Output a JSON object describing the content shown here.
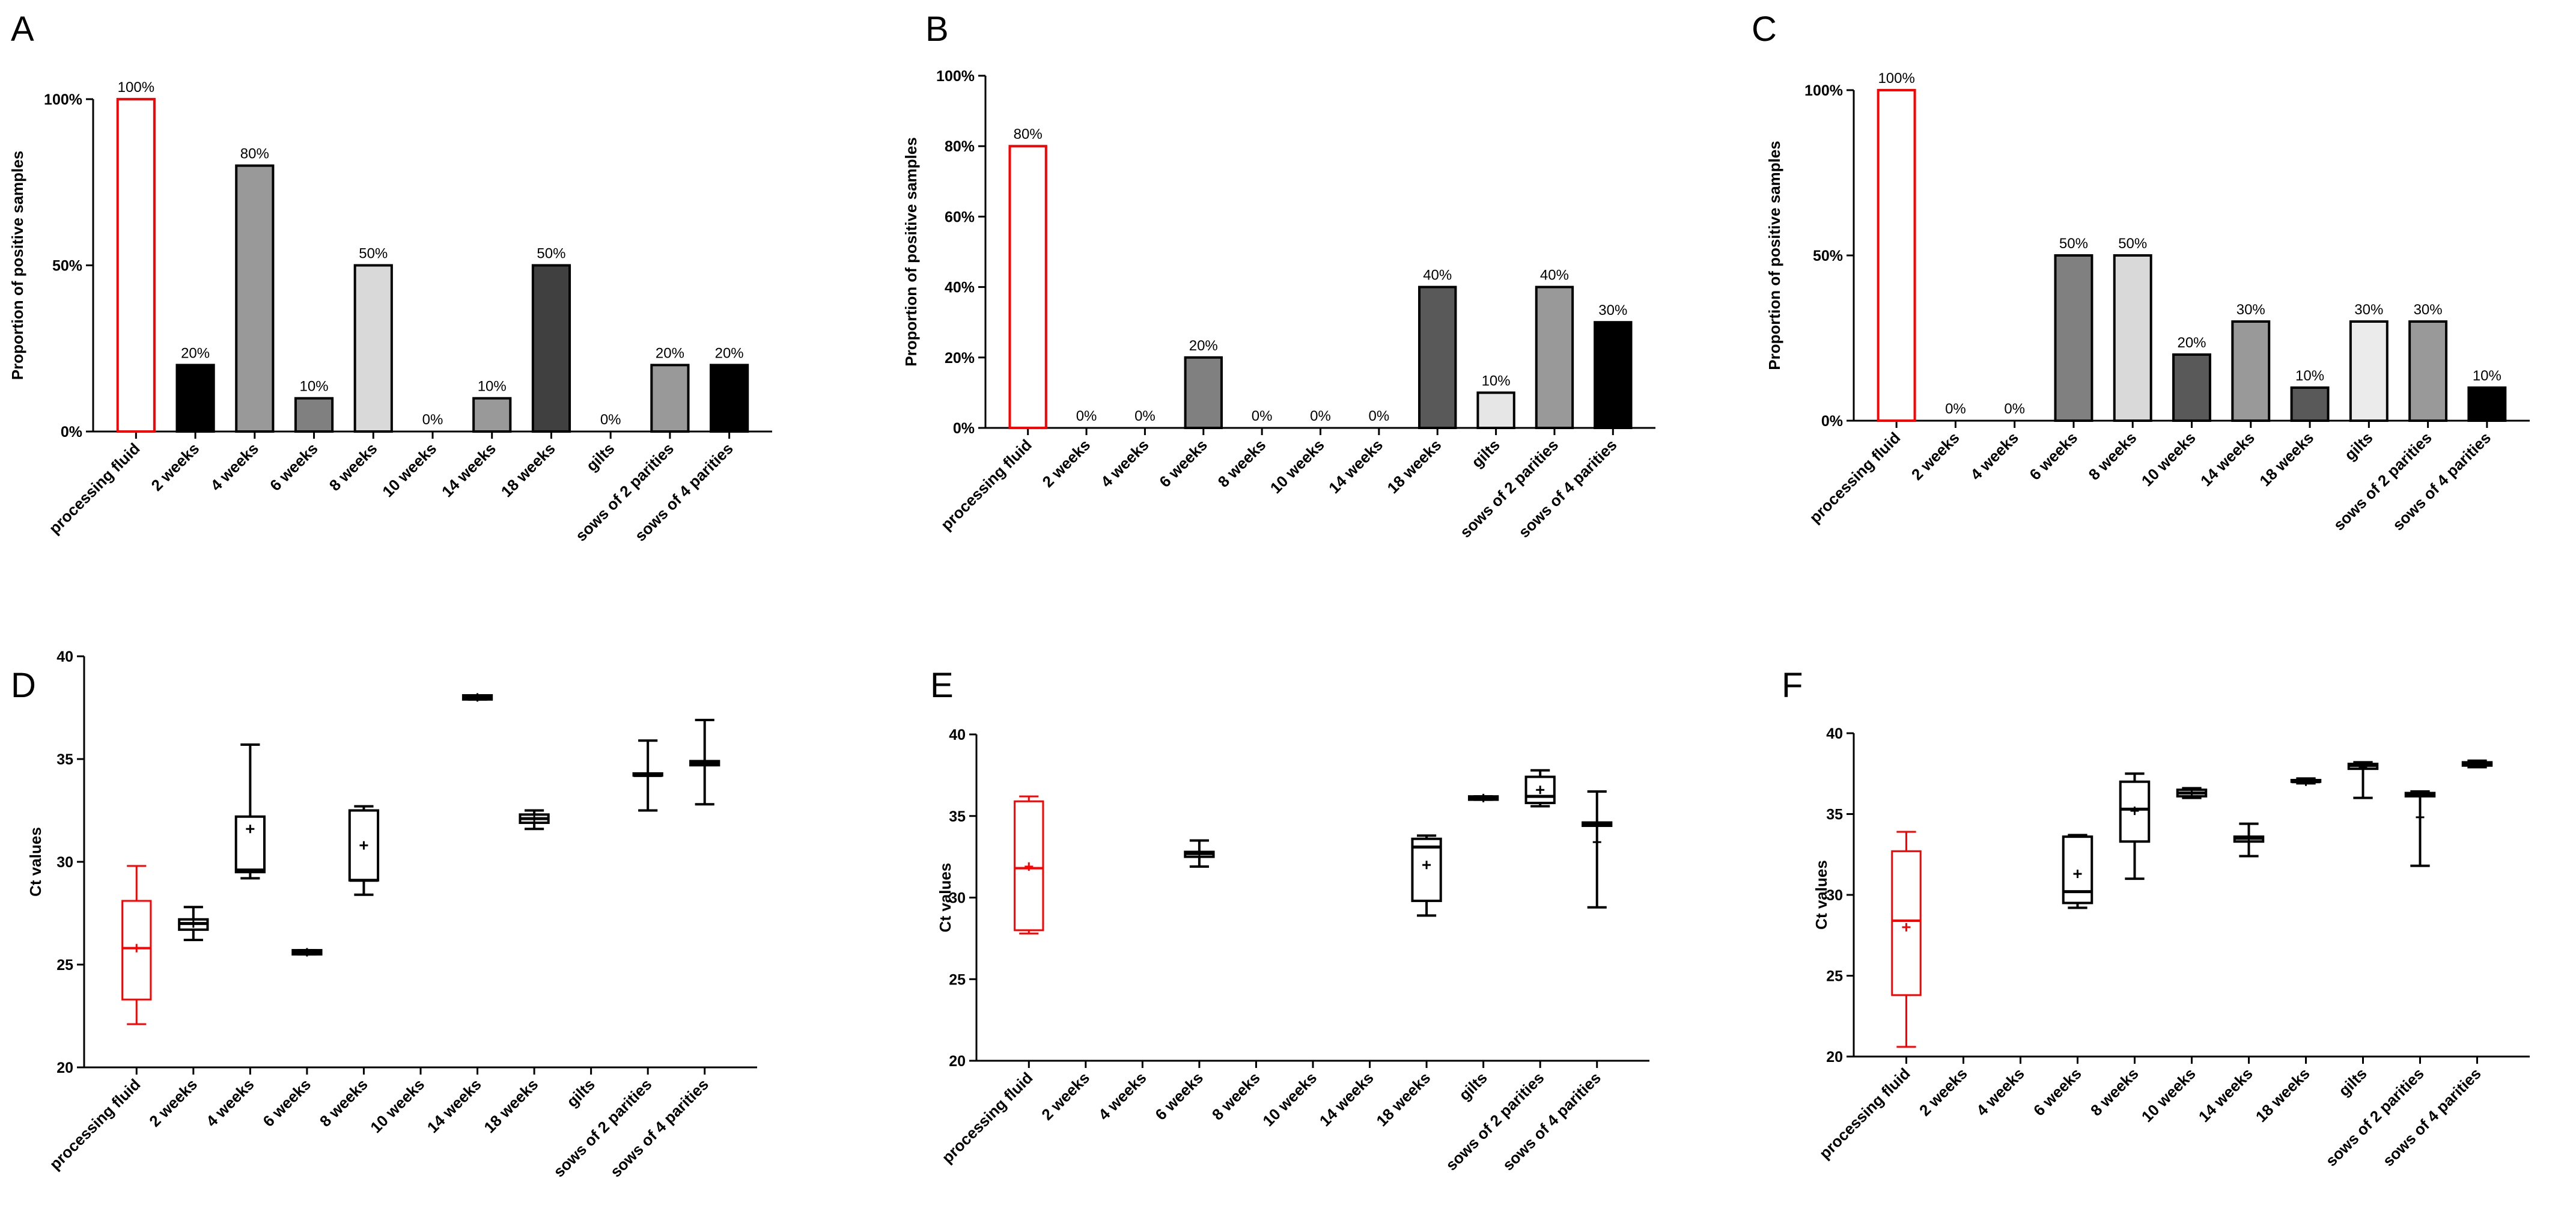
{
  "chart_data": [
    {
      "panel": "A",
      "type": "bar",
      "ylabel": "Proportion of positive samples",
      "xlabel": "",
      "ylim": [
        0,
        100
      ],
      "yticks": [
        "0%",
        "50%",
        "100%"
      ],
      "categories": [
        "processing fluid",
        "2 weeks",
        "4 weeks",
        "6 weeks",
        "8 weeks",
        "10 weeks",
        "14 weeks",
        "18 weeks",
        "gilts",
        "sows of 2 parities",
        "sows of 4 parities"
      ],
      "values": [
        100,
        20,
        80,
        10,
        50,
        0,
        10,
        50,
        0,
        20,
        20
      ],
      "labels": [
        "100%",
        "20%",
        "80%",
        "10%",
        "50%",
        "0%",
        "10%",
        "50%",
        "0%",
        "20%",
        "20%"
      ],
      "colors": [
        "#ffffff",
        "#000000",
        "#999999",
        "#808080",
        "#d9d9d9",
        "#ffffff",
        "#999999",
        "#404040",
        "#ffffff",
        "#999999",
        "#000000"
      ],
      "highlight": "#ff0000"
    },
    {
      "panel": "B",
      "type": "bar",
      "ylabel": "Proportion of positive samples",
      "xlabel": "",
      "ylim": [
        0,
        100
      ],
      "yticks": [
        "0%",
        "20%",
        "40%",
        "60%",
        "80%",
        "100%"
      ],
      "categories": [
        "processing fluid",
        "2 weeks",
        "4 weeks",
        "6 weeks",
        "8 weeks",
        "10 weeks",
        "14 weeks",
        "18 weeks",
        "gilts",
        "sows of 2 parities",
        "sows of 4 parities"
      ],
      "values": [
        80,
        0,
        0,
        20,
        0,
        0,
        0,
        40,
        10,
        40,
        30
      ],
      "labels": [
        "80%",
        "0%",
        "0%",
        "20%",
        "0%",
        "0%",
        "0%",
        "40%",
        "10%",
        "40%",
        "30%"
      ],
      "colors": [
        "#ffffff",
        "#000000",
        "#999999",
        "#808080",
        "#d9d9d9",
        "#ffffff",
        "#999999",
        "#595959",
        "#e6e6e6",
        "#999999",
        "#000000"
      ],
      "highlight": "#ff0000"
    },
    {
      "panel": "C",
      "type": "bar",
      "ylabel": "Proportion of positive samples",
      "xlabel": "",
      "ylim": [
        0,
        100
      ],
      "yticks": [
        "0%",
        "50%",
        "100%"
      ],
      "categories": [
        "processing fluid",
        "2 weeks",
        "4 weeks",
        "6 weeks",
        "8 weeks",
        "10 weeks",
        "14 weeks",
        "18 weeks",
        "gilts",
        "sows of 2 parities",
        "sows of 4 parities"
      ],
      "values": [
        100,
        0,
        0,
        50,
        50,
        20,
        30,
        10,
        30,
        30,
        10
      ],
      "labels": [
        "100%",
        "0%",
        "0%",
        "50%",
        "50%",
        "20%",
        "30%",
        "10%",
        "30%",
        "30%",
        "10%"
      ],
      "colors": [
        "#ffffff",
        "#000000",
        "#999999",
        "#808080",
        "#d9d9d9",
        "#595959",
        "#999999",
        "#595959",
        "#ebebeb",
        "#999999",
        "#000000"
      ],
      "highlight": "#ff0000"
    },
    {
      "panel": "D",
      "type": "box",
      "ylabel": "Ct values",
      "xlabel": "",
      "ylim": [
        20,
        40
      ],
      "yticks": [
        "20",
        "25",
        "30",
        "35",
        "40"
      ],
      "categories": [
        "processing fluid",
        "2 weeks",
        "4 weeks",
        "6 weeks",
        "8 weeks",
        "10 weeks",
        "14 weeks",
        "18 weeks",
        "gilts",
        "sows of 2 parities",
        "sows of 4 parities"
      ],
      "boxes": [
        {
          "min": 22.1,
          "q1": 23.3,
          "median": 25.8,
          "q3": 28.1,
          "max": 29.8,
          "mean": 25.8
        },
        {
          "min": 26.2,
          "q1": 26.7,
          "median": 27.0,
          "q3": 27.2,
          "max": 27.8,
          "mean": 27.0
        },
        {
          "min": 29.2,
          "q1": 29.5,
          "median": 29.6,
          "q3": 32.2,
          "max": 35.7,
          "mean": 31.6
        },
        {
          "min": 25.5,
          "q1": 25.5,
          "median": 25.6,
          "q3": 25.7,
          "max": 25.7,
          "mean": 25.6
        },
        {
          "min": 28.4,
          "q1": 29.1,
          "median": 29.1,
          "q3": 32.5,
          "max": 32.7,
          "mean": 30.8
        },
        null,
        {
          "min": 37.9,
          "q1": 37.9,
          "median": 38.0,
          "q3": 38.1,
          "max": 38.1,
          "mean": 38.0
        },
        {
          "min": 31.6,
          "q1": 31.9,
          "median": 32.1,
          "q3": 32.3,
          "max": 32.5,
          "mean": 32.1
        },
        null,
        {
          "min": 32.5,
          "q1": 34.2,
          "median": 34.2,
          "q3": 34.3,
          "max": 35.9,
          "mean": 34.2
        },
        {
          "min": 32.8,
          "q1": 34.7,
          "median": 34.8,
          "q3": 34.9,
          "max": 36.9,
          "mean": 34.8
        }
      ],
      "highlight": "#ff0000"
    },
    {
      "panel": "E",
      "type": "box",
      "ylabel": "Ct values",
      "xlabel": "",
      "ylim": [
        20,
        40
      ],
      "yticks": [
        "20",
        "25",
        "30",
        "35",
        "40"
      ],
      "categories": [
        "processing fluid",
        "2 weeks",
        "4 weeks",
        "6 weeks",
        "8 weeks",
        "10 weeks",
        "14 weeks",
        "18 weeks",
        "gilts",
        "sows of 2 parities",
        "sows of 4 parities"
      ],
      "boxes": [
        {
          "min": 27.8,
          "q1": 28.0,
          "median": 31.8,
          "q3": 35.9,
          "max": 36.2,
          "mean": 31.9
        },
        null,
        null,
        {
          "min": 31.9,
          "q1": 32.5,
          "median": 32.7,
          "q3": 32.8,
          "max": 33.5,
          "mean": 32.7
        },
        null,
        null,
        null,
        {
          "min": 28.9,
          "q1": 29.8,
          "median": 33.1,
          "q3": 33.6,
          "max": 33.8,
          "mean": 32.0
        },
        {
          "min": 36.0,
          "q1": 36.0,
          "median": 36.1,
          "q3": 36.2,
          "max": 36.2,
          "mean": 36.1
        },
        {
          "min": 35.6,
          "q1": 35.8,
          "median": 36.2,
          "q3": 37.4,
          "max": 37.8,
          "mean": 36.6
        },
        {
          "min": 29.4,
          "q1": 34.4,
          "median": 34.5,
          "q3": 34.6,
          "max": 36.5,
          "mean": 33.4
        }
      ],
      "highlight": "#ff0000"
    },
    {
      "panel": "F",
      "type": "box",
      "ylabel": "Ct values",
      "xlabel": "",
      "ylim": [
        20,
        40
      ],
      "yticks": [
        "20",
        "25",
        "30",
        "35",
        "40"
      ],
      "categories": [
        "processing fluid",
        "2 weeks",
        "4 weeks",
        "6 weeks",
        "8 weeks",
        "10 weeks",
        "14 weeks",
        "18 weeks",
        "gilts",
        "sows of 2 parities",
        "sows of 4 parities"
      ],
      "boxes": [
        {
          "min": 20.6,
          "q1": 23.8,
          "median": 28.4,
          "q3": 32.7,
          "max": 33.9,
          "mean": 28.0
        },
        null,
        null,
        {
          "min": 29.2,
          "q1": 29.5,
          "median": 30.2,
          "q3": 33.6,
          "max": 33.7,
          "mean": 31.3
        },
        {
          "min": 31.0,
          "q1": 33.3,
          "median": 35.3,
          "q3": 37.0,
          "max": 37.5,
          "mean": 35.2
        },
        {
          "min": 36.0,
          "q1": 36.1,
          "median": 36.3,
          "q3": 36.5,
          "max": 36.6,
          "mean": 36.3
        },
        {
          "min": 32.4,
          "q1": 33.3,
          "median": 33.5,
          "q3": 33.6,
          "max": 34.4,
          "mean": 33.5
        },
        {
          "min": 36.9,
          "q1": 37.0,
          "median": 37.0,
          "q3": 37.1,
          "max": 37.2,
          "mean": 37.0
        },
        {
          "min": 36.0,
          "q1": 37.8,
          "median": 38.0,
          "q3": 38.1,
          "max": 38.2,
          "mean": 37.9
        },
        {
          "min": 31.8,
          "q1": 36.1,
          "median": 36.2,
          "q3": 36.3,
          "max": 36.4,
          "mean": 34.8
        },
        {
          "min": 37.9,
          "q1": 38.0,
          "median": 38.1,
          "q3": 38.2,
          "max": 38.3,
          "mean": 38.1
        }
      ],
      "highlight": "#ff0000"
    }
  ]
}
